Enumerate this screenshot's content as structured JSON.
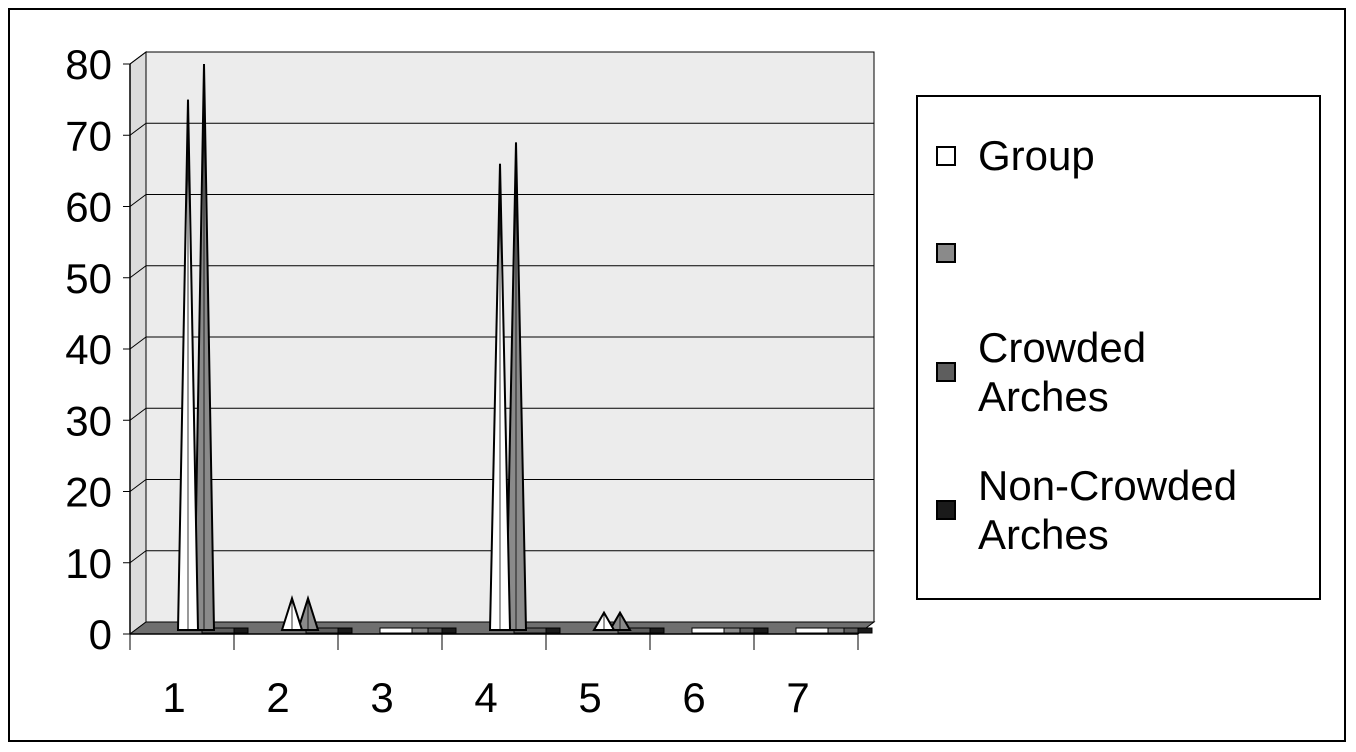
{
  "chart_data": {
    "type": "area",
    "categories": [
      "1",
      "2",
      "3",
      "4",
      "5",
      "6",
      "7"
    ],
    "ylim": [
      0,
      80
    ],
    "yticks": [
      "0",
      "10",
      "20",
      "30",
      "40",
      "50",
      "60",
      "70",
      "80"
    ],
    "grid": true,
    "legend_position": "right",
    "series": [
      {
        "name": "Group",
        "values": [
          75,
          5,
          0,
          66,
          3,
          0,
          0
        ],
        "color": "#ffffff"
      },
      {
        "name": "",
        "values": [
          80,
          5,
          0,
          69,
          3,
          0,
          0
        ],
        "color": "#8a8a8a"
      },
      {
        "name": "Crowded\nArches",
        "values": [
          0,
          0,
          0,
          0,
          0,
          0,
          0
        ],
        "color": "#5e5e5e"
      },
      {
        "name": "Non-Crowded\nArches",
        "values": [
          0,
          0,
          0,
          0,
          0,
          0,
          0
        ],
        "color": "#1a1a1a"
      }
    ]
  }
}
